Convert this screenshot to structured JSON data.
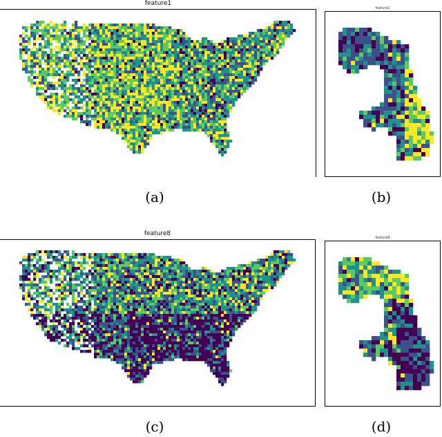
{
  "panels": [
    {
      "id": "a",
      "title": "feature1",
      "caption": "(a)"
    },
    {
      "id": "b",
      "title": "feature1",
      "caption": "(b)"
    },
    {
      "id": "c",
      "title": "feature8",
      "caption": "(c)"
    },
    {
      "id": "d",
      "title": "feature8",
      "caption": "(d)"
    }
  ],
  "colormap": {
    "name": "viridis",
    "colors": [
      "#440154",
      "#3b528b",
      "#21918c",
      "#5ec962",
      "#fde725"
    ]
  }
}
